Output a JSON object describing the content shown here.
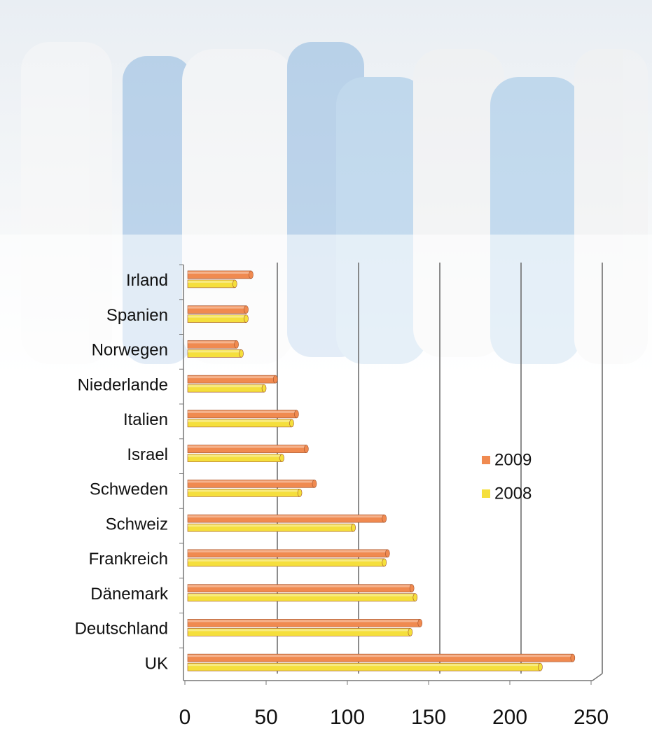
{
  "chart_data": {
    "type": "bar",
    "orientation": "horizontal",
    "categories": [
      "Irland",
      "Spanien",
      "Norwegen",
      "Niederlande",
      "Italien",
      "Israel",
      "Schweden",
      "Schweiz",
      "Frankreich",
      "Dänemark",
      "Deutschland",
      "UK"
    ],
    "series": [
      {
        "name": "2009",
        "color": "#f08a50",
        "values": [
          39,
          36,
          30,
          54,
          67,
          73,
          78,
          121,
          123,
          138,
          143,
          237
        ]
      },
      {
        "name": "2008",
        "color": "#f5df3c",
        "values": [
          29,
          36,
          33,
          47,
          64,
          58,
          69,
          102,
          121,
          140,
          137,
          217
        ]
      }
    ],
    "xlim": [
      0,
      250
    ],
    "xticks": [
      0,
      50,
      100,
      150,
      200,
      250
    ],
    "grid": true,
    "legend": "right"
  }
}
